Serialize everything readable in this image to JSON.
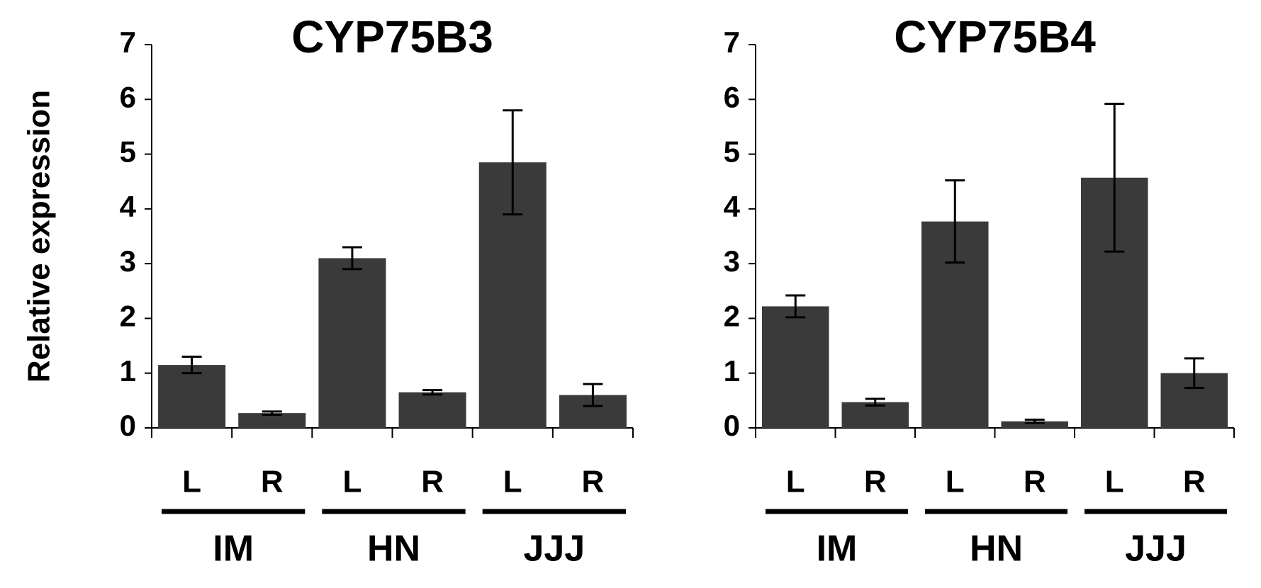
{
  "chart_data": [
    {
      "type": "bar",
      "title": "CYP75B3",
      "ylabel": "Relative expression",
      "categories": [
        "L",
        "R",
        "L",
        "R",
        "L",
        "R"
      ],
      "groups": [
        "IM",
        "HN",
        "JJJ"
      ],
      "values": [
        1.15,
        0.27,
        3.1,
        0.65,
        4.85,
        0.6
      ],
      "errors": [
        0.15,
        0.03,
        0.2,
        0.04,
        0.95,
        0.2
      ],
      "color": "#3a3a3a",
      "ylim": [
        0,
        7
      ],
      "yticks": [
        0,
        1,
        2,
        3,
        4,
        5,
        6,
        7
      ]
    },
    {
      "type": "bar",
      "title": "CYP75B4",
      "categories": [
        "L",
        "R",
        "L",
        "R",
        "L",
        "R"
      ],
      "groups": [
        "IM",
        "HN",
        "JJJ"
      ],
      "values": [
        2.22,
        0.47,
        3.77,
        0.12,
        4.57,
        1.0
      ],
      "errors": [
        0.2,
        0.06,
        0.75,
        0.03,
        1.35,
        0.27
      ],
      "color": "#3a3a3a",
      "ylim": [
        0,
        7
      ],
      "yticks": [
        0,
        1,
        2,
        3,
        4,
        5,
        6,
        7
      ]
    }
  ]
}
